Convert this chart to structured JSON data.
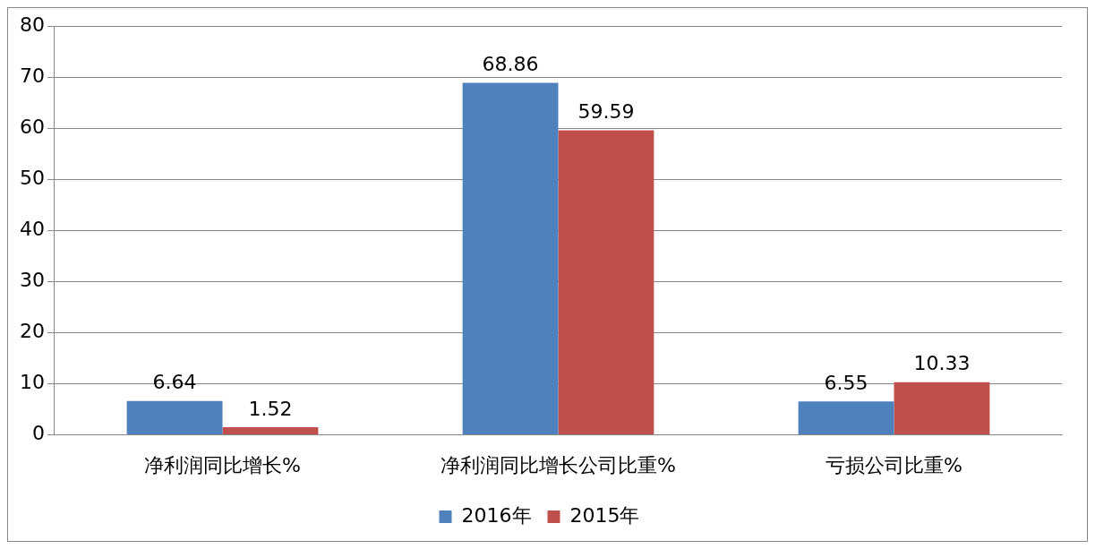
{
  "chart_data": {
    "type": "bar",
    "categories": [
      "净利润同比增长%",
      "净利润同比增长公司比重%",
      "亏损公司比重%"
    ],
    "series": [
      {
        "name": "2016年",
        "color": "#4f81bd",
        "values": [
          6.64,
          68.86,
          6.55
        ]
      },
      {
        "name": "2015年",
        "color": "#c0504d",
        "values": [
          1.52,
          59.59,
          10.33
        ]
      }
    ],
    "ylim": [
      0,
      80
    ],
    "yticks": [
      0,
      10,
      20,
      30,
      40,
      50,
      60,
      70,
      80
    ],
    "grid": "y",
    "legend": "bottom",
    "data_labels": true
  }
}
